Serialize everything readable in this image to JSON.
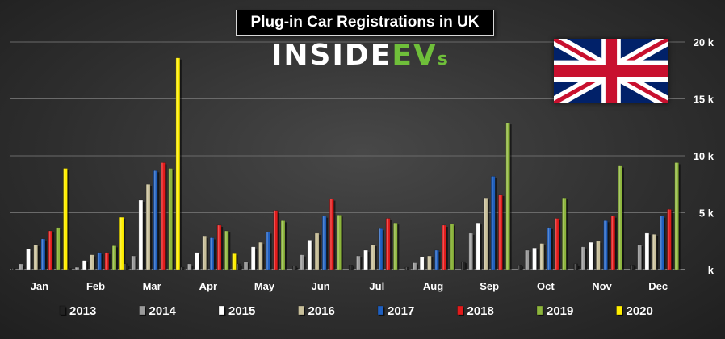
{
  "header": {
    "title": "Plug-in Car Registrations in UK",
    "logo_main": "INSIDE",
    "logo_ev": "EV",
    "logo_s": "s"
  },
  "chart_data": {
    "type": "bar",
    "title": "Plug-in Car Registrations in UK",
    "categories": [
      "Jan",
      "Feb",
      "Mar",
      "Apr",
      "May",
      "Jun",
      "Jul",
      "Aug",
      "Sep",
      "Oct",
      "Nov",
      "Dec"
    ],
    "ylim": [
      0,
      20000
    ],
    "yticks": [
      0,
      5000,
      10000,
      15000,
      20000
    ],
    "ytick_labels": [
      "k",
      "5 k",
      "10 k",
      "15 k",
      "20 k"
    ],
    "grid": true,
    "legend_position": "bottom",
    "series": [
      {
        "name": "2013",
        "color": "#222222",
        "values": [
          100,
          100,
          500,
          200,
          500,
          300,
          400,
          200,
          700,
          400,
          500,
          400
        ]
      },
      {
        "name": "2014",
        "color": "#9a9a9a",
        "values": [
          500,
          200,
          1200,
          500,
          700,
          1300,
          1200,
          600,
          3200,
          1700,
          2000,
          2200
        ]
      },
      {
        "name": "2015",
        "color": "#ffffff",
        "values": [
          1800,
          800,
          6100,
          1500,
          2000,
          2600,
          1700,
          1100,
          4100,
          1900,
          2400,
          3200
        ]
      },
      {
        "name": "2016",
        "color": "#c8bf9a",
        "values": [
          2200,
          1300,
          7500,
          2900,
          2400,
          3200,
          2200,
          1200,
          6300,
          2300,
          2500,
          3100
        ]
      },
      {
        "name": "2017",
        "color": "#1f5fbf",
        "values": [
          2700,
          1500,
          8700,
          2800,
          3300,
          4700,
          3600,
          1700,
          8200,
          3700,
          4300,
          4700
        ]
      },
      {
        "name": "2018",
        "color": "#e21b1b",
        "values": [
          3400,
          1500,
          9400,
          3900,
          5200,
          6200,
          4500,
          3900,
          6600,
          4500,
          4700,
          5300
        ]
      },
      {
        "name": "2019",
        "color": "#8db53c",
        "values": [
          3700,
          2100,
          8900,
          3400,
          4300,
          4800,
          4100,
          4000,
          12900,
          6300,
          9100,
          9400
        ]
      },
      {
        "name": "2020",
        "color": "#ffee00",
        "values": [
          8900,
          4600,
          18600,
          1400,
          null,
          null,
          null,
          null,
          null,
          null,
          null,
          null
        ]
      }
    ]
  },
  "icons": {
    "flag": "union-jack-flag-icon"
  }
}
